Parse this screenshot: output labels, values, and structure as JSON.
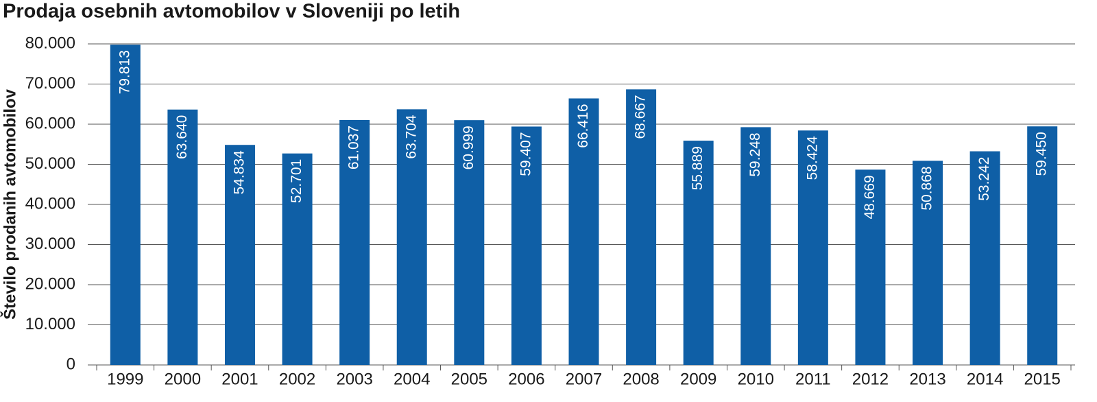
{
  "chart_data": {
    "type": "bar",
    "title": "Prodaja osebnih avtomobilov v Sloveniji po letih",
    "y_label": "Število prodanih avtomobilov",
    "categories": [
      "1999",
      "2000",
      "2001",
      "2002",
      "2003",
      "2004",
      "2005",
      "2006",
      "2007",
      "2008",
      "2009",
      "2010",
      "2011",
      "2012",
      "2013",
      "2014",
      "2015"
    ],
    "values": [
      79813,
      63640,
      54834,
      52701,
      61037,
      63704,
      60999,
      59407,
      66416,
      68667,
      55889,
      59248,
      58424,
      48669,
      50868,
      53242,
      59450
    ],
    "value_labels": [
      "79.813",
      "63.640",
      "54.834",
      "52.701",
      "61.037",
      "63.704",
      "60.999",
      "59.407",
      "66.416",
      "68.667",
      "55.889",
      "59.248",
      "58.424",
      "48.669",
      "50.868",
      "53.242",
      "59.450"
    ],
    "color": "#0f5fa6",
    "ylim": [
      0,
      80000
    ],
    "yticks": [
      0,
      {
        "value": 10000,
        "label": "10.000"
      },
      {
        "value": 20000,
        "label": "20.000"
      },
      {
        "value": 30000,
        "label": "30.000"
      },
      {
        "value": 40000,
        "label": "40.000"
      },
      {
        "value": 50000,
        "label": "50.000"
      },
      {
        "value": 60000,
        "label": "60.000"
      },
      {
        "value": 70000,
        "label": "70.000"
      },
      {
        "value": 80000,
        "label": "80.000"
      }
    ],
    "grid": true
  }
}
